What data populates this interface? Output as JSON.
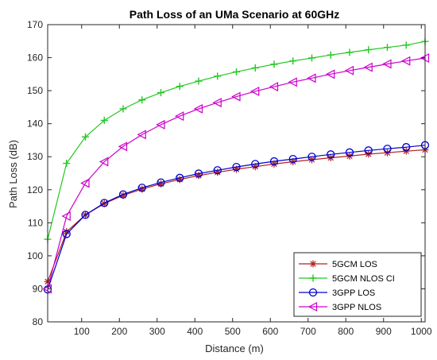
{
  "chart_data": {
    "type": "line",
    "title": "Path Loss of an UMa Scenario at 60GHz",
    "xlabel": "Distance (m)",
    "ylabel": "Path Loss (dB)",
    "xlim": [
      10,
      1010
    ],
    "ylim": [
      80,
      170
    ],
    "x_ticks": [
      100,
      200,
      300,
      400,
      500,
      600,
      700,
      800,
      900,
      1000
    ],
    "y_ticks": [
      80,
      90,
      100,
      110,
      120,
      130,
      140,
      150,
      160,
      170
    ],
    "grid": false,
    "legend_position": "bottom-right",
    "x": [
      10,
      60,
      110,
      160,
      210,
      260,
      310,
      360,
      410,
      460,
      510,
      560,
      610,
      660,
      710,
      760,
      810,
      860,
      910,
      960,
      1010
    ],
    "series": [
      {
        "name": "5GCM LOS",
        "color": "#b22222",
        "marker": "asterisk",
        "values": [
          92.2,
          107.3,
          112.4,
          115.8,
          118.3,
          120.2,
          121.8,
          123.1,
          124.3,
          125.3,
          126.2,
          127.0,
          127.8,
          128.5,
          129.1,
          129.7,
          130.2,
          130.8,
          131.2,
          131.7,
          132.1
        ]
      },
      {
        "name": "5GCM NLOS CI",
        "color": "#22c822",
        "marker": "plus",
        "values": [
          105.0,
          128.0,
          136.0,
          141.0,
          144.5,
          147.2,
          149.4,
          151.3,
          152.9,
          154.4,
          155.7,
          156.9,
          158.0,
          159.0,
          159.9,
          160.8,
          161.6,
          162.4,
          163.1,
          163.8,
          164.9
        ]
      },
      {
        "name": "3GPP LOS",
        "color": "#0000cc",
        "marker": "circle",
        "values": [
          89.8,
          106.6,
          112.4,
          116.0,
          118.6,
          120.6,
          122.2,
          123.6,
          124.9,
          125.9,
          126.9,
          127.8,
          128.6,
          129.3,
          130.0,
          130.7,
          131.3,
          131.9,
          132.4,
          132.9,
          133.5
        ]
      },
      {
        "name": "3GPP NLOS",
        "color": "#cc00cc",
        "marker": "triangle-left",
        "values": [
          90.0,
          112.0,
          122.0,
          128.5,
          133.1,
          136.7,
          139.7,
          142.3,
          144.5,
          146.4,
          148.2,
          149.8,
          151.2,
          152.6,
          153.8,
          155.0,
          156.1,
          157.1,
          158.1,
          159.0,
          159.9
        ]
      }
    ]
  }
}
